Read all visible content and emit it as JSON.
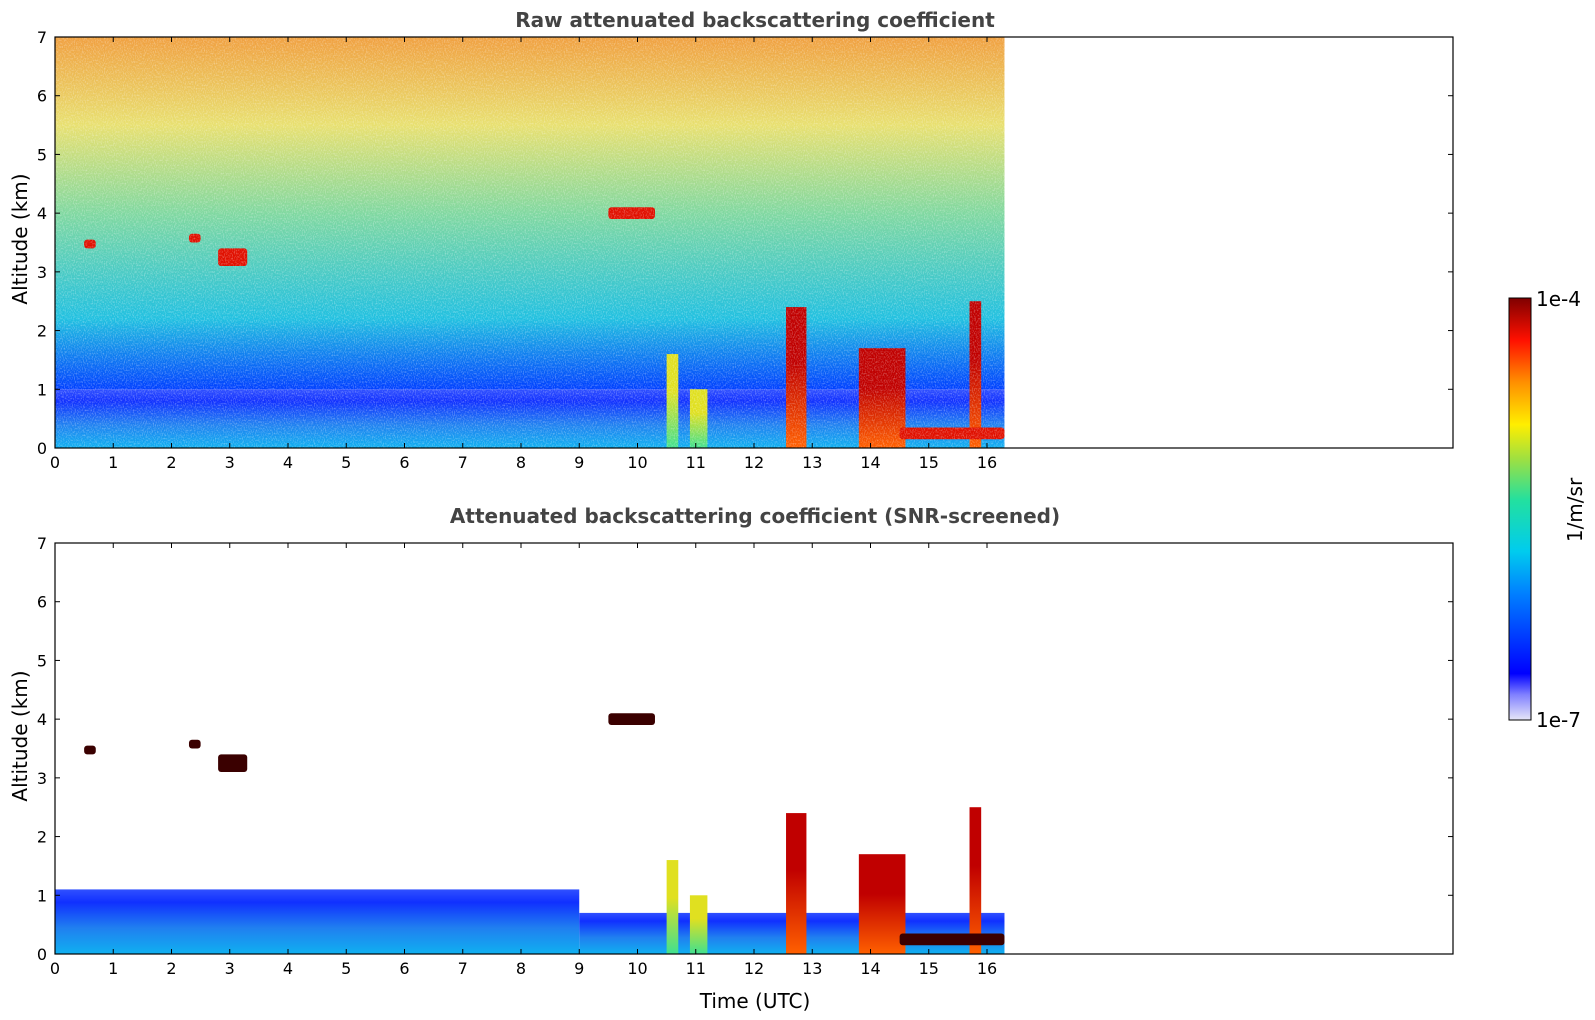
{
  "chart_data": [
    {
      "type": "heatmap",
      "title": "Raw attenuated backscattering coefficient",
      "xlabel": "",
      "ylabel": "Altitude (km)",
      "xlim": [
        0,
        24
      ],
      "ylim": [
        0,
        7
      ],
      "xticks": [
        "0",
        "1",
        "2",
        "3",
        "4",
        "5",
        "6",
        "7",
        "8",
        "9",
        "10",
        "11",
        "12",
        "13",
        "14",
        "15",
        "16"
      ],
      "yticks": [
        "0",
        "1",
        "2",
        "3",
        "4",
        "5",
        "6",
        "7"
      ],
      "data_end_time": 16.3,
      "features": [
        {
          "kind": "boundary_layer",
          "x": [
            0,
            16.3
          ],
          "y": [
            0,
            1.0
          ],
          "level": "low"
        },
        {
          "kind": "noise_background",
          "x": [
            0,
            16.3
          ],
          "y": [
            1.0,
            7.0
          ],
          "level": "noisy"
        },
        {
          "kind": "cloud_layer",
          "x": [
            9.5,
            10.3
          ],
          "y": [
            3.9,
            4.1
          ],
          "level": "high"
        },
        {
          "kind": "cloud_layer",
          "x": [
            0.5,
            0.7
          ],
          "y": [
            3.4,
            3.55
          ],
          "level": "high"
        },
        {
          "kind": "cloud_layer",
          "x": [
            2.3,
            2.5
          ],
          "y": [
            3.5,
            3.65
          ],
          "level": "high"
        },
        {
          "kind": "cloud_layer",
          "x": [
            2.8,
            3.3
          ],
          "y": [
            3.1,
            3.4
          ],
          "level": "high"
        },
        {
          "kind": "plume",
          "x": [
            10.5,
            10.7
          ],
          "y": [
            0,
            1.6
          ],
          "level": "mid"
        },
        {
          "kind": "plume",
          "x": [
            10.9,
            11.2
          ],
          "y": [
            0,
            1.0
          ],
          "level": "mid"
        },
        {
          "kind": "plume",
          "x": [
            12.55,
            12.9
          ],
          "y": [
            0,
            2.4
          ],
          "level": "high"
        },
        {
          "kind": "plume",
          "x": [
            13.8,
            14.6
          ],
          "y": [
            0,
            1.7
          ],
          "level": "high"
        },
        {
          "kind": "plume",
          "x": [
            15.7,
            15.9
          ],
          "y": [
            0,
            2.5
          ],
          "level": "high"
        },
        {
          "kind": "surface_layer",
          "x": [
            14.5,
            16.3
          ],
          "y": [
            0.15,
            0.35
          ],
          "level": "high"
        }
      ]
    },
    {
      "type": "heatmap",
      "title": "Attenuated backscattering coefficient (SNR-screened)",
      "xlabel": "Time (UTC)",
      "ylabel": "Altitude (km)",
      "xlim": [
        0,
        24
      ],
      "ylim": [
        0,
        7
      ],
      "xticks": [
        "0",
        "1",
        "2",
        "3",
        "4",
        "5",
        "6",
        "7",
        "8",
        "9",
        "10",
        "11",
        "12",
        "13",
        "14",
        "15",
        "16"
      ],
      "yticks": [
        "0",
        "1",
        "2",
        "3",
        "4",
        "5",
        "6",
        "7"
      ],
      "data_end_time": 16.3,
      "features": [
        {
          "kind": "boundary_layer",
          "x": [
            0,
            9.0
          ],
          "y": [
            0,
            1.1
          ],
          "level": "low"
        },
        {
          "kind": "boundary_layer",
          "x": [
            9.0,
            16.3
          ],
          "y": [
            0,
            0.7
          ],
          "level": "low"
        },
        {
          "kind": "cloud_layer",
          "x": [
            9.5,
            10.3
          ],
          "y": [
            3.9,
            4.1
          ],
          "level": "dark"
        },
        {
          "kind": "cloud_layer",
          "x": [
            0.5,
            0.7
          ],
          "y": [
            3.4,
            3.55
          ],
          "level": "dark"
        },
        {
          "kind": "cloud_layer",
          "x": [
            2.3,
            2.5
          ],
          "y": [
            3.5,
            3.65
          ],
          "level": "dark"
        },
        {
          "kind": "cloud_layer",
          "x": [
            2.8,
            3.3
          ],
          "y": [
            3.1,
            3.4
          ],
          "level": "dark"
        },
        {
          "kind": "plume",
          "x": [
            10.5,
            10.7
          ],
          "y": [
            0,
            1.6
          ],
          "level": "mid"
        },
        {
          "kind": "plume",
          "x": [
            10.9,
            11.2
          ],
          "y": [
            0,
            1.0
          ],
          "level": "mid"
        },
        {
          "kind": "plume",
          "x": [
            12.55,
            12.9
          ],
          "y": [
            0,
            2.4
          ],
          "level": "high"
        },
        {
          "kind": "plume",
          "x": [
            13.8,
            14.6
          ],
          "y": [
            0,
            1.7
          ],
          "level": "high"
        },
        {
          "kind": "plume",
          "x": [
            15.7,
            15.9
          ],
          "y": [
            0,
            2.5
          ],
          "level": "high"
        },
        {
          "kind": "surface_layer",
          "x": [
            14.5,
            16.3
          ],
          "y": [
            0.15,
            0.35
          ],
          "level": "dark"
        }
      ]
    }
  ],
  "colorbar": {
    "max_label": "1e-4",
    "min_label": "1e-7",
    "unit_label": "1/m/sr",
    "colormap": "jet",
    "log_scale": true,
    "max_value": 0.0001,
    "min_value": 1e-07
  },
  "colors": {
    "title": "#444444",
    "axis": "#000000",
    "background": "#ffffff"
  }
}
